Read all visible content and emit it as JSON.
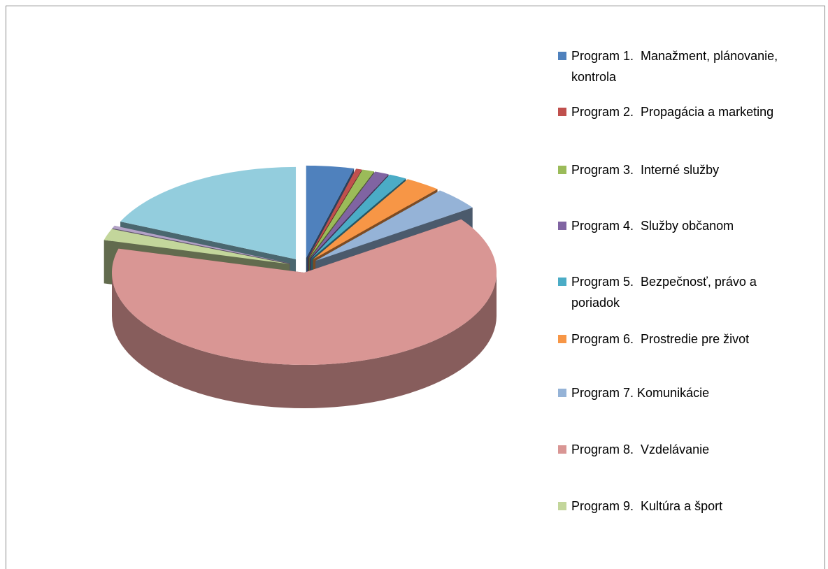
{
  "chart_data": {
    "type": "pie3d",
    "categories": [
      "Program 1.  Manažment, plánovanie, kontrola",
      "Program 2.  Propagácia a marketing",
      "Program 3.  Interné služby",
      "Program 4.  Služby občanom",
      "Program 5.  Bezpečnosť, právo a poriadok",
      "Program 6.  Prostredie pre život",
      "Program 7. Komunikácie",
      "Program 8.  Vzdelávanie",
      "Program 9.  Kultúra a šport",
      null,
      null
    ],
    "values": [
      4,
      0.5,
      1,
      1.2,
      1.5,
      3,
      4,
      64,
      2,
      0.5,
      18.3
    ],
    "colors": [
      "#4f81bd",
      "#c0504d",
      "#9bbb59",
      "#8064a2",
      "#4bacc6",
      "#f79646",
      "#95b3d7",
      "#d99694",
      "#c3d69b",
      "#b3a2c7",
      "#93cddd"
    ],
    "legend": "right"
  }
}
